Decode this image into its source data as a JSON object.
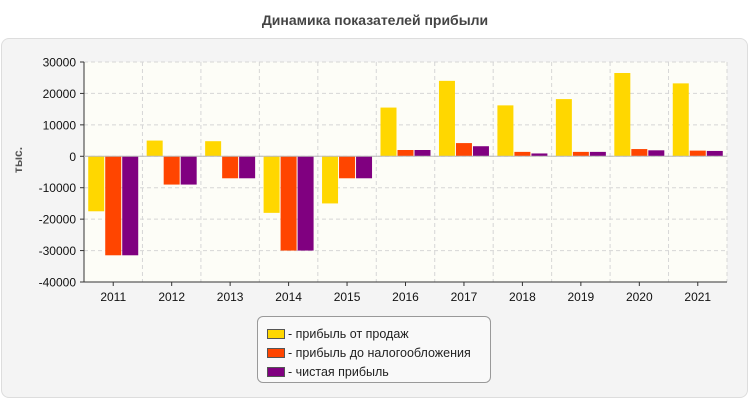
{
  "chart_data": {
    "type": "bar",
    "title": "Динамика показателей прибыли",
    "ylabel": "тыс.",
    "xlabel": "",
    "ylim": [
      -40000,
      30000
    ],
    "yticks": [
      "30000",
      "20000",
      "10000",
      "0",
      "-10000",
      "-20000",
      "-30000",
      "-40000"
    ],
    "grid": true,
    "legend_position": "bottom",
    "categories": [
      "2011",
      "2012",
      "2013",
      "2014",
      "2015",
      "2016",
      "2017",
      "2018",
      "2019",
      "2020",
      "2021"
    ],
    "series": [
      {
        "name": "- прибыль от продаж",
        "color": "#FFD700",
        "values": [
          -17500,
          5000,
          4800,
          -18000,
          -15000,
          15500,
          24000,
          16200,
          18200,
          26500,
          23200
        ]
      },
      {
        "name": "- прибыль до налогообложения",
        "color": "#FF4500",
        "values": [
          -31500,
          -9000,
          -7000,
          -30000,
          -7000,
          2000,
          4200,
          1400,
          1400,
          2300,
          1800
        ]
      },
      {
        "name": "- чистая прибыль",
        "color": "#800080",
        "values": [
          -31500,
          -9000,
          -7000,
          -30000,
          -7000,
          2000,
          3200,
          900,
          1400,
          1900,
          1700
        ]
      }
    ]
  }
}
